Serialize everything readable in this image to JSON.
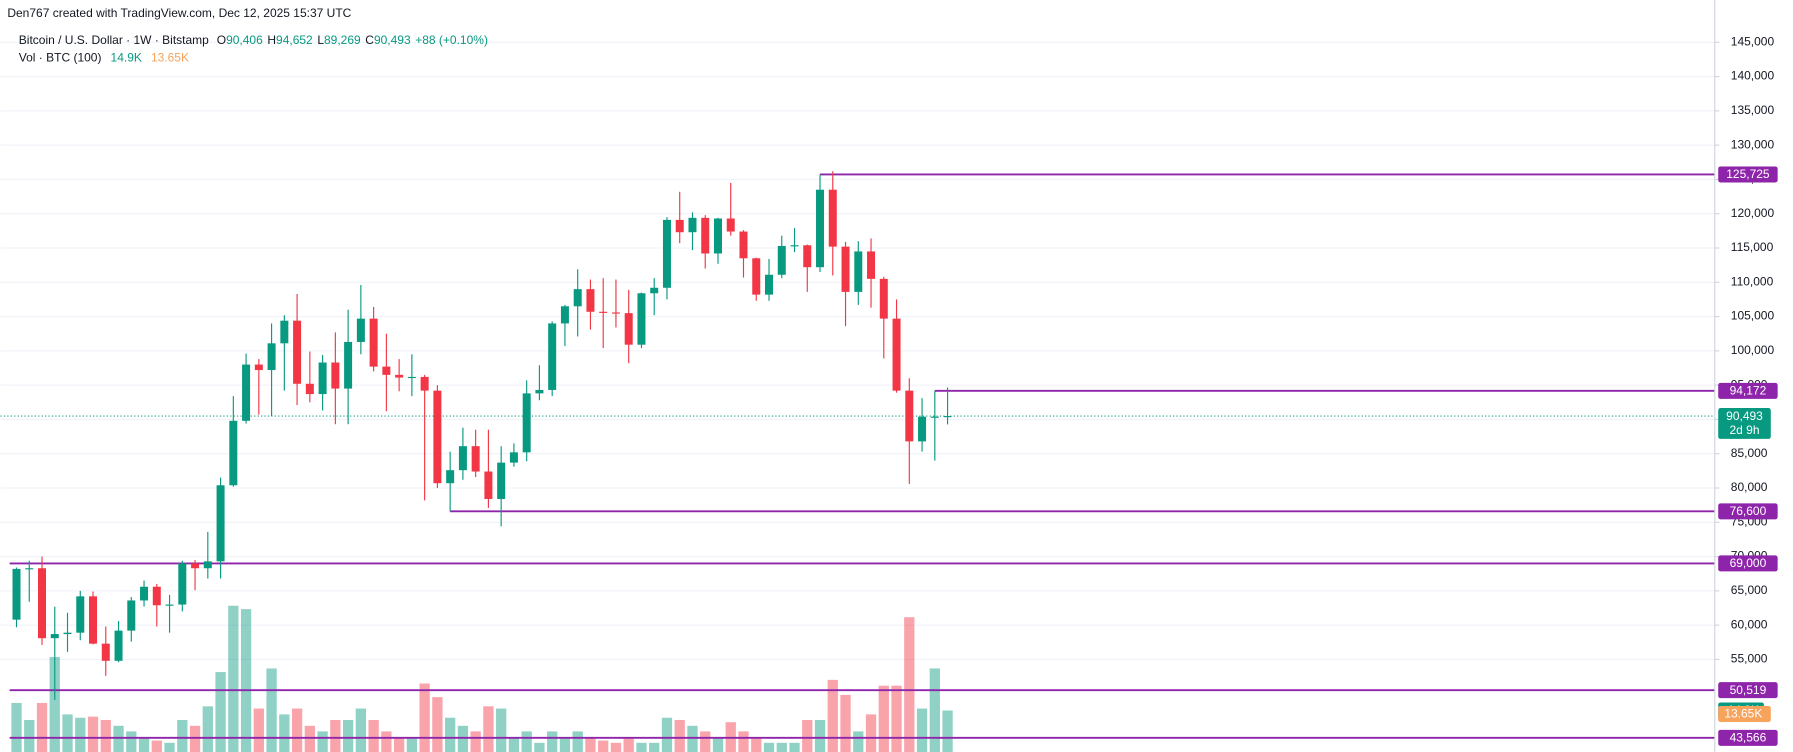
{
  "chart_data": {
    "type": "candlestick",
    "header": "Den767 created with TradingView.com, Dec 12, 2025 15:37 UTC",
    "legend": {
      "symbol": "Bitcoin / U.S. Dollar · 1W · Bitstamp",
      "ohlc": [
        {
          "key": "O",
          "label": "90,406"
        },
        {
          "key": "H",
          "label": "94,652"
        },
        {
          "key": "L",
          "label": "89,269"
        },
        {
          "key": "C",
          "label": "90,493"
        }
      ],
      "change": "+88 (+0.10%)"
    },
    "volume_legend": "Vol · BTC (100)",
    "up_color": "#089981",
    "down_color": "#f23645",
    "level_color": "#8e24aa",
    "ma_color": "#f7a35c",
    "open": [
      60800,
      68200,
      68300,
      58100,
      58700,
      58900,
      64200,
      57300,
      54800,
      59200,
      63600,
      65600,
      62900,
      63000,
      69000,
      68300,
      69300,
      80400,
      89800,
      98000,
      97200,
      101100,
      104400,
      95200,
      93700,
      98300,
      94500,
      101300,
      104700,
      97700,
      96500,
      96100,
      96200,
      94200,
      80700,
      82600,
      86100,
      82400,
      78400,
      83700,
      85200,
      93800,
      94300,
      104000,
      106500,
      109000,
      105700,
      105600,
      105500,
      100900,
      108400,
      109200,
      119100,
      117300,
      119400,
      114200,
      119300,
      117400,
      113500,
      108200,
      111100,
      115300,
      115400,
      112200,
      123500,
      115200,
      108600,
      114500,
      110500,
      104700,
      94200,
      86800,
      90400,
      90406
    ],
    "high": [
      68400,
      69400,
      70000,
      62700,
      61800,
      65000,
      64900,
      59800,
      60600,
      64100,
      66500,
      66000,
      64400,
      69400,
      69500,
      73600,
      81500,
      93400,
      99600,
      98800,
      104000,
      105200,
      108300,
      99900,
      99400,
      102700,
      106000,
      109600,
      106400,
      102500,
      98800,
      99500,
      96500,
      95000,
      85300,
      88800,
      88500,
      88500,
      86100,
      86500,
      95700,
      97900,
      104300,
      106700,
      111900,
      110400,
      110600,
      110400,
      108900,
      108500,
      110600,
      119500,
      123200,
      120200,
      119800,
      119400,
      124500,
      117600,
      113600,
      113400,
      116800,
      117900,
      115500,
      125725,
      126200,
      115900,
      116000,
      116400,
      110800,
      107500,
      96000,
      93100,
      94172,
      94652
    ],
    "low": [
      59700,
      63400,
      57100,
      49100,
      56100,
      57800,
      57200,
      52600,
      54600,
      57600,
      62700,
      59800,
      58900,
      62000,
      65100,
      66800,
      66800,
      80200,
      89400,
      90700,
      90500,
      94200,
      92100,
      92500,
      91300,
      89300,
      89300,
      99500,
      97000,
      91200,
      94100,
      93400,
      78200,
      80000,
      76600,
      81200,
      81600,
      77100,
      74400,
      83100,
      83900,
      92800,
      93400,
      100700,
      102100,
      103100,
      100400,
      103400,
      98200,
      100400,
      105200,
      107500,
      115700,
      114700,
      112000,
      112700,
      116800,
      110700,
      107300,
      107300,
      110600,
      114400,
      108600,
      111500,
      111000,
      103600,
      106700,
      106300,
      98900,
      93900,
      80600,
      85300,
      84000,
      89269
    ],
    "close": [
      68200,
      68300,
      58100,
      58700,
      58900,
      64200,
      57300,
      54800,
      59200,
      63600,
      65600,
      62900,
      63000,
      69000,
      68300,
      69300,
      80400,
      89800,
      98000,
      97200,
      101100,
      104400,
      95200,
      93700,
      98300,
      94500,
      101300,
      104700,
      97700,
      96500,
      96100,
      96200,
      94200,
      80700,
      82600,
      86100,
      82400,
      78400,
      83700,
      85200,
      93800,
      94300,
      104000,
      106500,
      109000,
      105700,
      105600,
      105500,
      100900,
      108400,
      109200,
      119100,
      117300,
      119400,
      114200,
      119300,
      117400,
      113500,
      108200,
      111100,
      115300,
      115400,
      112200,
      123500,
      115200,
      108600,
      114500,
      110500,
      104700,
      94200,
      86800,
      90400,
      90406,
      90493
    ],
    "volume": [
      17.6,
      11.5,
      17.6,
      34.1,
      13.5,
      12.3,
      12.7,
      11.5,
      9.4,
      7.4,
      5.3,
      4.1,
      3.3,
      11.5,
      9.4,
      16.4,
      28.7,
      52.5,
      51.3,
      15.6,
      30.0,
      13.5,
      15.6,
      9.4,
      7.4,
      11.5,
      11.5,
      15.6,
      11.5,
      7.4,
      5.3,
      5.3,
      24.6,
      19.7,
      12.3,
      9.4,
      7.4,
      16.4,
      15.6,
      5.3,
      7.4,
      3.3,
      7.4,
      5.3,
      7.4,
      5.3,
      4.1,
      3.3,
      5.3,
      3.3,
      3.3,
      12.3,
      11.5,
      9.4,
      7.4,
      5.3,
      10.7,
      7.4,
      5.3,
      3.3,
      3.3,
      3.3,
      11.5,
      11.5,
      25.9,
      20.5,
      7.4,
      13.5,
      23.8,
      23.8,
      48.4,
      15.6,
      30.0,
      14.9
    ],
    "volume_last_label": "14.9K",
    "volume_ma": 13.65,
    "volume_ma_label": "13.65K",
    "ylim": [
      41500,
      151167
    ],
    "vol_ylim": [
      0,
      270
    ],
    "yticks": [
      {
        "value": 55000,
        "label": "55,000"
      },
      {
        "value": 60000,
        "label": "60,000"
      },
      {
        "value": 65000,
        "label": "65,000"
      },
      {
        "value": 70000,
        "label": "70,000"
      },
      {
        "value": 75000,
        "label": "75,000"
      },
      {
        "value": 80000,
        "label": "80,000"
      },
      {
        "value": 85000,
        "label": "85,000"
      },
      {
        "value": 90000,
        "label": "90,000"
      },
      {
        "value": 95000,
        "label": "95,000"
      },
      {
        "value": 100000,
        "label": "100,000"
      },
      {
        "value": 105000,
        "label": "105,000"
      },
      {
        "value": 110000,
        "label": "110,000"
      },
      {
        "value": 115000,
        "label": "115,000"
      },
      {
        "value": 120000,
        "label": "120,000"
      },
      {
        "value": 125000,
        "label": "125,000"
      },
      {
        "value": 130000,
        "label": "130,000"
      },
      {
        "value": 135000,
        "label": "135,000"
      },
      {
        "value": 140000,
        "label": "140,000"
      },
      {
        "value": 145000,
        "label": "145,000"
      }
    ],
    "grid": true,
    "levels": [
      {
        "value": 125725,
        "label": "125,725"
      },
      {
        "value": 94172,
        "label": "94,172"
      },
      {
        "value": 76600,
        "label": "76,600"
      },
      {
        "value": 69000,
        "label": "69,000"
      },
      {
        "value": 50519,
        "label": "50,519"
      },
      {
        "value": 43566,
        "label": "43,566"
      }
    ],
    "last_price": {
      "value": 90493,
      "label": "90,493",
      "countdown": "2d 9h"
    }
  }
}
